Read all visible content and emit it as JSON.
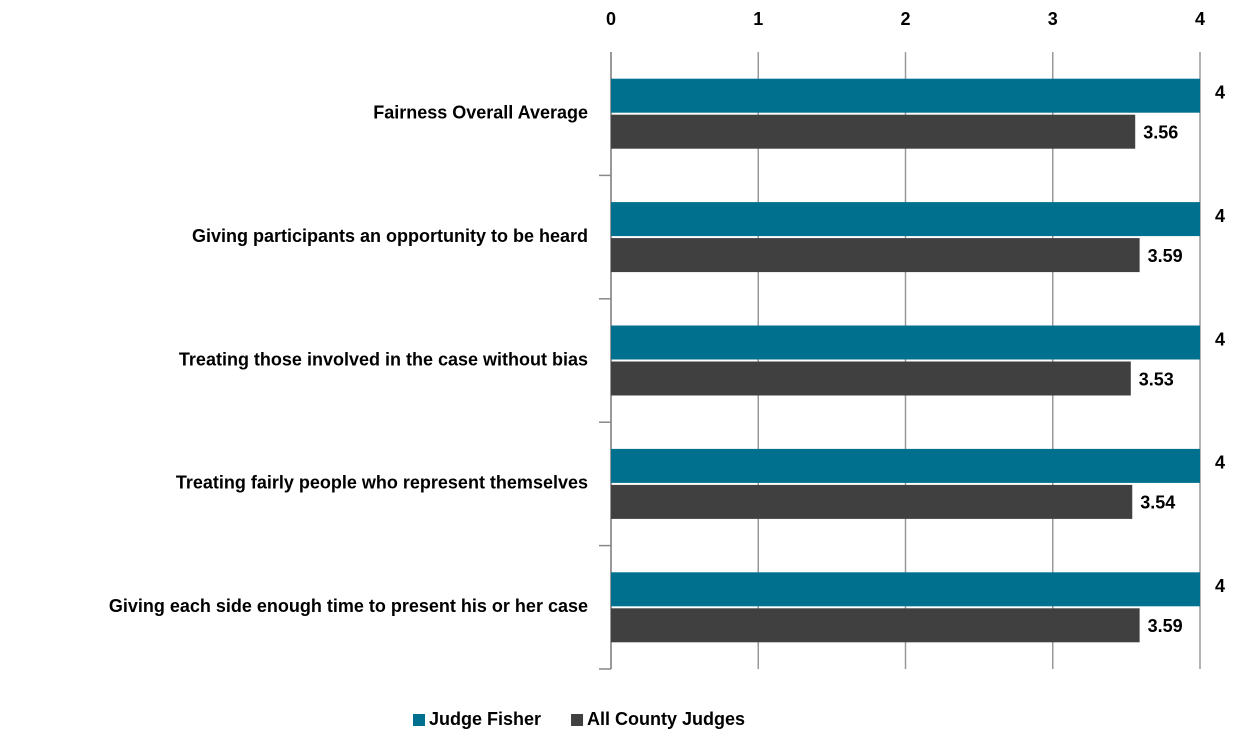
{
  "chart_data": {
    "type": "bar",
    "orientation": "horizontal",
    "categories": [
      "Fairness Overall Average",
      "Giving participants an opportunity to be heard",
      "Treating those involved in the case without bias",
      "Treating fairly people who represent themselves",
      "Giving each side enough time to present his or her case"
    ],
    "series": [
      {
        "name": "Judge Fisher",
        "color": "#00708f",
        "values": [
          4,
          4,
          4,
          4,
          4
        ]
      },
      {
        "name": "All County Judges",
        "color": "#404040",
        "values": [
          3.56,
          3.59,
          3.53,
          3.54,
          3.59
        ]
      }
    ],
    "xlim": [
      0,
      4
    ],
    "xticks": [
      0,
      1,
      2,
      3,
      4
    ],
    "grid": true,
    "legend": "bottom"
  }
}
